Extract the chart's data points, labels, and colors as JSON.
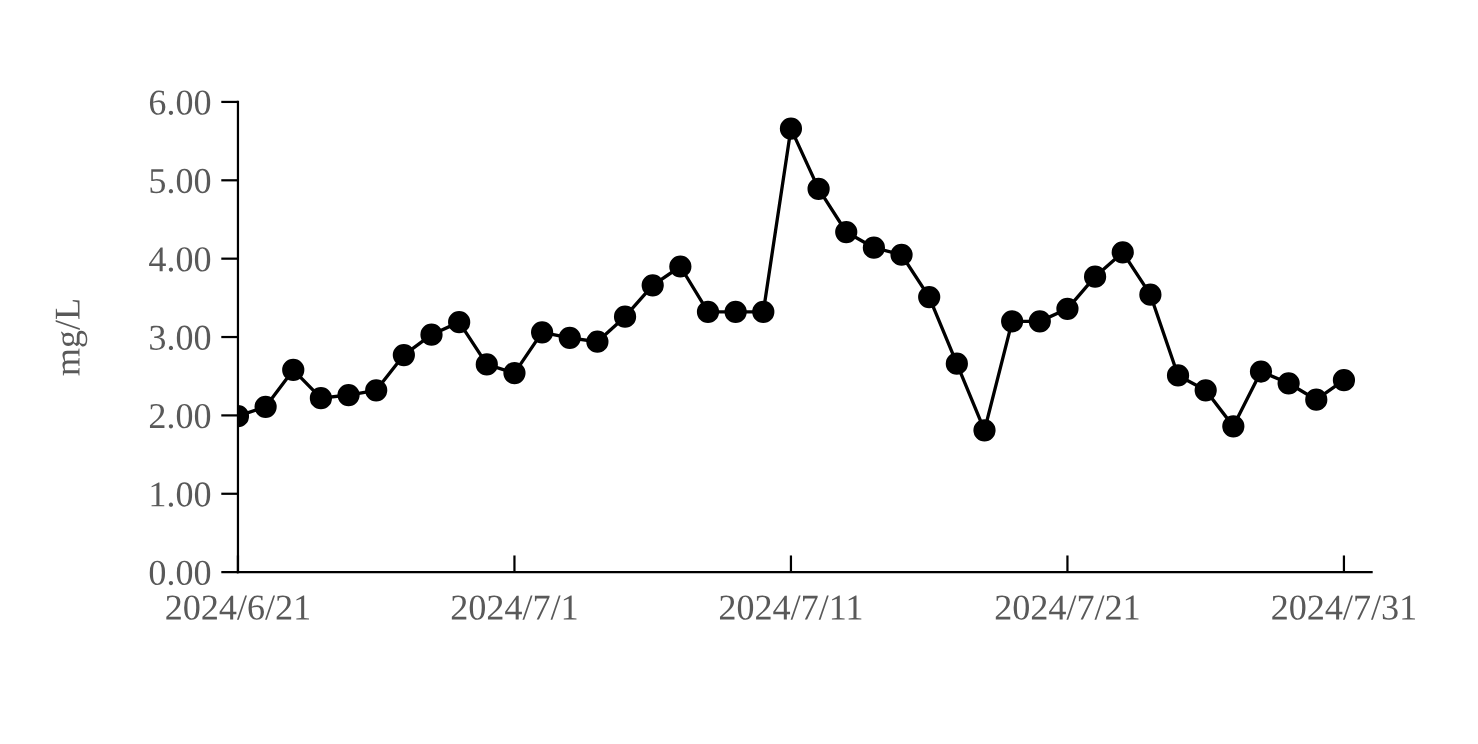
{
  "chart_data": {
    "type": "line",
    "ylabel": "mg/L",
    "x": [
      "2024-06-21",
      "2024-06-22",
      "2024-06-23",
      "2024-06-24",
      "2024-06-25",
      "2024-06-26",
      "2024-06-27",
      "2024-06-28",
      "2024-06-29",
      "2024-06-30",
      "2024-07-01",
      "2024-07-02",
      "2024-07-03",
      "2024-07-04",
      "2024-07-05",
      "2024-07-06",
      "2024-07-07",
      "2024-07-08",
      "2024-07-09",
      "2024-07-10",
      "2024-07-11",
      "2024-07-12",
      "2024-07-13",
      "2024-07-14",
      "2024-07-15",
      "2024-07-16",
      "2024-07-17",
      "2024-07-18",
      "2024-07-19",
      "2024-07-20",
      "2024-07-21",
      "2024-07-22",
      "2024-07-23",
      "2024-07-24",
      "2024-07-25",
      "2024-07-26",
      "2024-07-27",
      "2024-07-28",
      "2024-07-29",
      "2024-07-30",
      "2024-07-31"
    ],
    "series": [
      {
        "color": "#000000",
        "values": [
          1.99,
          2.11,
          2.58,
          2.22,
          2.26,
          2.32,
          2.77,
          3.03,
          3.19,
          2.65,
          2.54,
          3.06,
          2.99,
          2.94,
          3.26,
          3.66,
          3.9,
          3.32,
          3.32,
          3.32,
          5.66,
          4.89,
          4.34,
          4.14,
          4.05,
          3.51,
          2.66,
          1.81,
          3.2,
          3.2,
          3.36,
          3.77,
          4.08,
          3.54,
          2.51,
          2.32,
          1.86,
          2.56,
          2.41,
          2.2,
          2.45
        ]
      }
    ],
    "xlim": [
      "2024-06-21",
      "2024-08-01"
    ],
    "xticks": [
      {
        "value": "2024-06-21",
        "label": "2024/6/21"
      },
      {
        "value": "2024-07-01",
        "label": "2024/7/1"
      },
      {
        "value": "2024-07-11",
        "label": "2024/7/11"
      },
      {
        "value": "2024-07-21",
        "label": "2024/7/21"
      },
      {
        "value": "2024-07-31",
        "label": "2024/7/31"
      }
    ],
    "ylim": [
      0,
      6
    ],
    "yticks": [
      {
        "value": 0,
        "label": "0.00"
      },
      {
        "value": 1,
        "label": "1.00"
      },
      {
        "value": 2,
        "label": "2.00"
      },
      {
        "value": 3,
        "label": "3.00"
      },
      {
        "value": 4,
        "label": "4.00"
      },
      {
        "value": 5,
        "label": "5.00"
      },
      {
        "value": 6,
        "label": "6.00"
      }
    ],
    "marker": "circle",
    "line_style": "solid",
    "grid": false,
    "legend": false
  }
}
